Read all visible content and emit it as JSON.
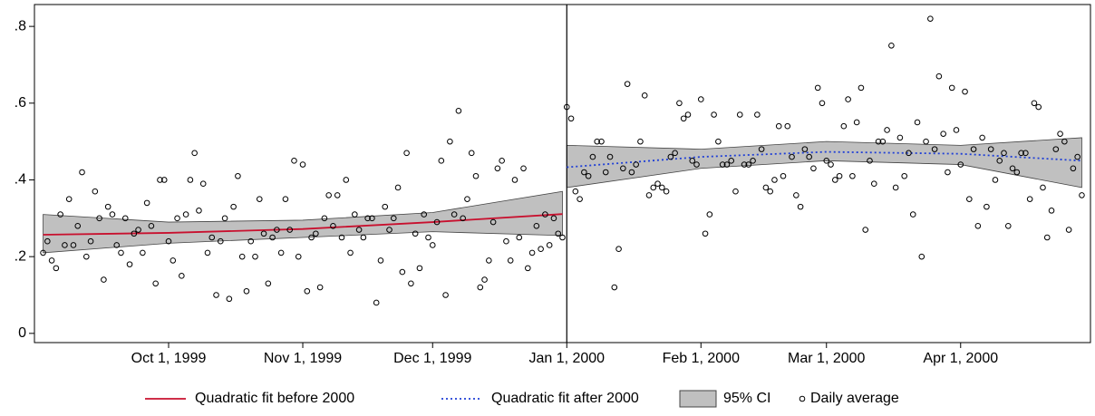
{
  "chart_data": {
    "type": "scatter",
    "xlim": [
      "1999-08-31",
      "2000-05-01"
    ],
    "xticks": [
      {
        "value": "1999-10-01",
        "label": "Oct 1, 1999"
      },
      {
        "value": "1999-11-01",
        "label": "Nov 1, 1999"
      },
      {
        "value": "1999-12-01",
        "label": "Dec 1, 1999"
      },
      {
        "value": "2000-01-01",
        "label": "Jan 1, 2000"
      },
      {
        "value": "2000-02-01",
        "label": "Feb 1, 2000"
      },
      {
        "value": "2000-03-01",
        "label": "Mar 1, 2000"
      },
      {
        "value": "2000-04-01",
        "label": "Apr 1, 2000"
      }
    ],
    "ylim": [
      -0.024,
      0.857
    ],
    "yticks": [
      0,
      {
        "value": 0.2,
        "label": ".2"
      },
      {
        "value": 0.4,
        "label": ".4"
      },
      {
        "value": 0.6,
        "label": ".6"
      },
      {
        "value": 0.8,
        "label": ".8"
      }
    ],
    "xline": "2000-01-01",
    "legend": "bottom",
    "series": [
      {
        "name": "Quadratic fit before 2000",
        "type": "line",
        "color": "#c8102e",
        "dash": "solid",
        "x": [
          "1999-09-02",
          "1999-10-01",
          "1999-11-01",
          "1999-12-01",
          "1999-12-31"
        ],
        "values": [
          0.257,
          0.262,
          0.272,
          0.29,
          0.311
        ]
      },
      {
        "name": "Quadratic fit after 2000",
        "type": "line",
        "color": "#1f3fd6",
        "dash": "dotted",
        "x": [
          "2000-01-01",
          "2000-02-01",
          "2000-03-01",
          "2000-04-01",
          "2000-04-29"
        ],
        "values": [
          0.433,
          0.46,
          0.473,
          0.468,
          0.45
        ]
      },
      {
        "name": "95% CI",
        "type": "band",
        "color": "#c0c0c0",
        "x": [
          "1999-09-02",
          "1999-10-01",
          "1999-11-01",
          "1999-12-01",
          "1999-12-31",
          null,
          "2000-01-01",
          "2000-02-01",
          "2000-03-01",
          "2000-04-01",
          "2000-04-29"
        ],
        "lower": [
          0.21,
          0.235,
          0.25,
          0.265,
          0.255,
          null,
          0.38,
          0.43,
          0.45,
          0.44,
          0.38
        ],
        "upper": [
          0.31,
          0.29,
          0.295,
          0.315,
          0.37,
          null,
          0.49,
          0.48,
          0.5,
          0.49,
          0.51
        ]
      },
      {
        "name": "Daily average",
        "type": "scatter",
        "color": "#000000",
        "x": [
          "1999-09-02",
          "1999-09-03",
          "1999-09-04",
          "1999-09-05",
          "1999-09-06",
          "1999-09-07",
          "1999-09-08",
          "1999-09-09",
          "1999-09-10",
          "1999-09-11",
          "1999-09-12",
          "1999-09-13",
          "1999-09-14",
          "1999-09-15",
          "1999-09-16",
          "1999-09-17",
          "1999-09-18",
          "1999-09-19",
          "1999-09-20",
          "1999-09-21",
          "1999-09-22",
          "1999-09-23",
          "1999-09-24",
          "1999-09-25",
          "1999-09-26",
          "1999-09-27",
          "1999-09-28",
          "1999-09-29",
          "1999-09-30",
          "1999-10-01",
          "1999-10-02",
          "1999-10-03",
          "1999-10-04",
          "1999-10-05",
          "1999-10-06",
          "1999-10-07",
          "1999-10-08",
          "1999-10-09",
          "1999-10-10",
          "1999-10-11",
          "1999-10-12",
          "1999-10-13",
          "1999-10-14",
          "1999-10-15",
          "1999-10-16",
          "1999-10-17",
          "1999-10-18",
          "1999-10-19",
          "1999-10-20",
          "1999-10-21",
          "1999-10-22",
          "1999-10-23",
          "1999-10-24",
          "1999-10-25",
          "1999-10-26",
          "1999-10-27",
          "1999-10-28",
          "1999-10-29",
          "1999-10-30",
          "1999-10-31",
          "1999-11-01",
          "1999-11-02",
          "1999-11-03",
          "1999-11-04",
          "1999-11-05",
          "1999-11-06",
          "1999-11-07",
          "1999-11-08",
          "1999-11-09",
          "1999-11-10",
          "1999-11-11",
          "1999-11-12",
          "1999-11-13",
          "1999-11-14",
          "1999-11-15",
          "1999-11-16",
          "1999-11-17",
          "1999-11-18",
          "1999-11-19",
          "1999-11-20",
          "1999-11-21",
          "1999-11-22",
          "1999-11-23",
          "1999-11-24",
          "1999-11-25",
          "1999-11-26",
          "1999-11-27",
          "1999-11-28",
          "1999-11-29",
          "1999-11-30",
          "1999-12-01",
          "1999-12-02",
          "1999-12-03",
          "1999-12-04",
          "1999-12-05",
          "1999-12-06",
          "1999-12-07",
          "1999-12-08",
          "1999-12-09",
          "1999-12-10",
          "1999-12-11",
          "1999-12-12",
          "1999-12-13",
          "1999-12-14",
          "1999-12-15",
          "1999-12-16",
          "1999-12-17",
          "1999-12-18",
          "1999-12-19",
          "1999-12-20",
          "1999-12-21",
          "1999-12-22",
          "1999-12-23",
          "1999-12-24",
          "1999-12-25",
          "1999-12-26",
          "1999-12-27",
          "1999-12-28",
          "1999-12-29",
          "1999-12-30",
          "1999-12-31",
          "2000-01-01",
          "2000-01-02",
          "2000-01-03",
          "2000-01-04",
          "2000-01-05",
          "2000-01-06",
          "2000-01-07",
          "2000-01-08",
          "2000-01-09",
          "2000-01-10",
          "2000-01-11",
          "2000-01-12",
          "2000-01-13",
          "2000-01-14",
          "2000-01-15",
          "2000-01-16",
          "2000-01-17",
          "2000-01-18",
          "2000-01-19",
          "2000-01-20",
          "2000-01-21",
          "2000-01-22",
          "2000-01-23",
          "2000-01-24",
          "2000-01-25",
          "2000-01-26",
          "2000-01-27",
          "2000-01-28",
          "2000-01-29",
          "2000-01-30",
          "2000-01-31",
          "2000-02-01",
          "2000-02-02",
          "2000-02-03",
          "2000-02-04",
          "2000-02-05",
          "2000-02-06",
          "2000-02-07",
          "2000-02-08",
          "2000-02-09",
          "2000-02-10",
          "2000-02-11",
          "2000-02-12",
          "2000-02-13",
          "2000-02-14",
          "2000-02-15",
          "2000-02-16",
          "2000-02-17",
          "2000-02-18",
          "2000-02-19",
          "2000-02-20",
          "2000-02-21",
          "2000-02-22",
          "2000-02-23",
          "2000-02-24",
          "2000-02-25",
          "2000-02-26",
          "2000-02-27",
          "2000-02-28",
          "2000-02-29",
          "2000-03-01",
          "2000-03-02",
          "2000-03-03",
          "2000-03-04",
          "2000-03-05",
          "2000-03-06",
          "2000-03-07",
          "2000-03-08",
          "2000-03-09",
          "2000-03-10",
          "2000-03-11",
          "2000-03-12",
          "2000-03-13",
          "2000-03-14",
          "2000-03-15",
          "2000-03-16",
          "2000-03-17",
          "2000-03-18",
          "2000-03-19",
          "2000-03-20",
          "2000-03-21",
          "2000-03-22",
          "2000-03-23",
          "2000-03-24",
          "2000-03-25",
          "2000-03-26",
          "2000-03-27",
          "2000-03-28",
          "2000-03-29",
          "2000-03-30",
          "2000-03-31",
          "2000-04-01",
          "2000-04-02",
          "2000-04-03",
          "2000-04-04",
          "2000-04-05",
          "2000-04-06",
          "2000-04-07",
          "2000-04-08",
          "2000-04-09",
          "2000-04-10",
          "2000-04-11",
          "2000-04-12",
          "2000-04-13",
          "2000-04-14",
          "2000-04-15",
          "2000-04-16",
          "2000-04-17",
          "2000-04-18",
          "2000-04-19",
          "2000-04-20",
          "2000-04-21",
          "2000-04-22",
          "2000-04-23",
          "2000-04-24",
          "2000-04-25",
          "2000-04-26",
          "2000-04-27",
          "2000-04-28",
          "2000-04-29"
        ],
        "values": [
          0.21,
          0.24,
          0.19,
          0.17,
          0.31,
          0.23,
          0.35,
          0.23,
          0.28,
          0.42,
          0.2,
          0.24,
          0.37,
          0.3,
          0.14,
          0.33,
          0.31,
          0.23,
          0.21,
          0.3,
          0.18,
          0.26,
          0.27,
          0.21,
          0.34,
          0.28,
          0.13,
          0.4,
          0.4,
          0.24,
          0.19,
          0.3,
          0.15,
          0.31,
          0.4,
          0.47,
          0.32,
          0.39,
          0.21,
          0.25,
          0.1,
          0.24,
          0.3,
          0.09,
          0.33,
          0.41,
          0.2,
          0.11,
          0.24,
          0.2,
          0.35,
          0.26,
          0.13,
          0.25,
          0.27,
          0.21,
          0.35,
          0.27,
          0.45,
          0.2,
          0.44,
          0.11,
          0.25,
          0.26,
          0.12,
          0.3,
          0.36,
          0.28,
          0.36,
          0.25,
          0.4,
          0.21,
          0.31,
          0.27,
          0.25,
          0.3,
          0.3,
          0.08,
          0.19,
          0.33,
          0.27,
          0.3,
          0.38,
          0.16,
          0.47,
          0.13,
          0.26,
          0.17,
          0.31,
          0.25,
          0.23,
          0.29,
          0.45,
          0.1,
          0.5,
          0.31,
          0.58,
          0.3,
          0.35,
          0.47,
          0.41,
          0.12,
          0.14,
          0.19,
          0.29,
          0.43,
          0.45,
          0.24,
          0.19,
          0.4,
          0.25,
          0.43,
          0.17,
          0.21,
          0.28,
          0.22,
          0.31,
          0.23,
          0.3,
          0.26,
          0.25,
          0.59,
          0.56,
          0.37,
          0.35,
          0.42,
          0.41,
          0.46,
          0.5,
          0.5,
          0.42,
          0.46,
          0.12,
          0.22,
          0.43,
          0.65,
          0.42,
          0.44,
          0.5,
          0.62,
          0.36,
          0.38,
          0.39,
          0.38,
          0.37,
          0.46,
          0.47,
          0.6,
          0.56,
          0.57,
          0.45,
          0.44,
          0.61,
          0.26,
          0.31,
          0.57,
          0.5,
          0.44,
          0.44,
          0.45,
          0.37,
          0.57,
          0.44,
          0.44,
          0.45,
          0.57,
          0.48,
          0.38,
          0.37,
          0.4,
          0.54,
          0.41,
          0.54,
          0.46,
          0.36,
          0.33,
          0.48,
          0.46,
          0.43,
          0.64,
          0.6,
          0.45,
          0.44,
          0.4,
          0.41,
          0.54,
          0.61,
          0.41,
          0.55,
          0.64,
          0.27,
          0.45,
          0.39,
          0.5,
          0.5,
          0.53,
          0.75,
          0.38,
          0.51,
          0.41,
          0.47,
          0.31,
          0.55,
          0.2,
          0.5,
          0.82,
          0.48,
          0.67,
          0.52,
          0.42,
          0.64,
          0.53,
          0.44,
          0.63,
          0.35,
          0.48,
          0.28,
          0.51,
          0.33,
          0.48,
          0.4,
          0.45,
          0.47,
          0.28,
          0.43,
          0.42,
          0.47,
          0.47,
          0.35,
          0.6,
          0.59,
          0.38,
          0.25,
          0.32,
          0.48,
          0.52,
          0.5,
          0.27,
          0.43,
          0.46,
          0.36
        ]
      }
    ]
  }
}
